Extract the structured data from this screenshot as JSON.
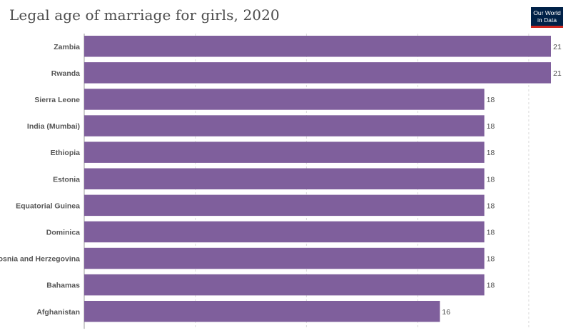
{
  "header": {
    "title": "Legal age of marriage for girls, 2020",
    "logo_line1": "Our World",
    "logo_line2": "in Data"
  },
  "colors": {
    "bar": "#7f5f9c",
    "title": "#4d4d4d",
    "logo_bg": "#002147",
    "logo_accent": "#ce261e"
  },
  "chart_data": {
    "type": "bar",
    "orientation": "horizontal",
    "title": "Legal age of marriage for girls, 2020",
    "categories": [
      "Zambia",
      "Rwanda",
      "Sierra Leone",
      "India (Mumbai)",
      "Ethiopia",
      "Estonia",
      "Equatorial Guinea",
      "Dominica",
      "Bosnia and Herzegovina",
      "Bahamas",
      "Afghanistan"
    ],
    "values": [
      21,
      21,
      18,
      18,
      18,
      18,
      18,
      18,
      18,
      18,
      16
    ],
    "xlim": [
      0,
      21
    ],
    "grid": true,
    "data_labels": true
  }
}
